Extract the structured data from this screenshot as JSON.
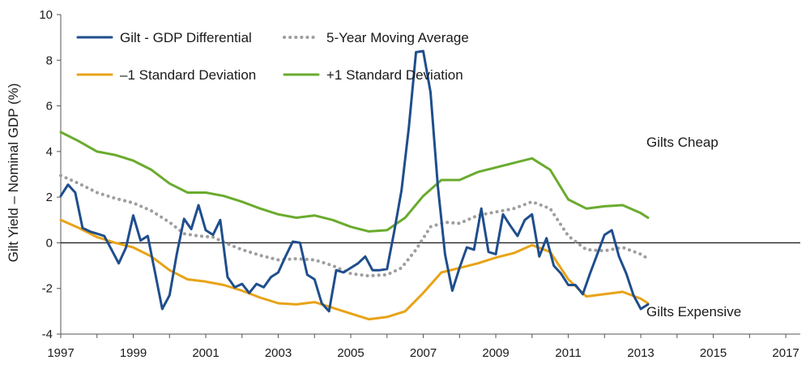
{
  "chart_data": {
    "type": "line",
    "title": "",
    "xlabel": "",
    "ylabel": "Gilt Yield – Nominal GDP (%)",
    "xlim": [
      1997,
      2017.4
    ],
    "ylim": [
      -4,
      10
    ],
    "x_ticks": [
      1997,
      1999,
      2001,
      2003,
      2005,
      2007,
      2009,
      2011,
      2013,
      2015,
      2017
    ],
    "y_ticks": [
      -4,
      -2,
      0,
      2,
      4,
      6,
      8,
      10
    ],
    "grid": false,
    "legend": {
      "placement": "top-left",
      "entries": [
        "Gilt - GDP Differential",
        "5-Year Moving Average",
        "–1 Standard Deviation",
        "+1 Standard Deviation"
      ]
    },
    "annotations": [
      "Gilts Cheap",
      "Gilts Expensive"
    ],
    "series": [
      {
        "name": "Gilt - GDP Differential",
        "color": "#1f4e8c",
        "style": "solid",
        "points": [
          [
            1997.0,
            2.05
          ],
          [
            1997.2,
            2.55
          ],
          [
            1997.4,
            2.2
          ],
          [
            1997.6,
            0.65
          ],
          [
            1997.8,
            0.5
          ],
          [
            1998.0,
            0.4
          ],
          [
            1998.2,
            0.3
          ],
          [
            1998.4,
            -0.3
          ],
          [
            1998.6,
            -0.9
          ],
          [
            1998.8,
            -0.2
          ],
          [
            1999.0,
            1.2
          ],
          [
            1999.2,
            0.1
          ],
          [
            1999.4,
            0.3
          ],
          [
            1999.6,
            -1.3
          ],
          [
            1999.8,
            -2.9
          ],
          [
            2000.0,
            -2.3
          ],
          [
            2000.2,
            -0.5
          ],
          [
            2000.4,
            1.05
          ],
          [
            2000.6,
            0.6
          ],
          [
            2000.8,
            1.65
          ],
          [
            2001.0,
            0.55
          ],
          [
            2001.2,
            0.35
          ],
          [
            2001.4,
            1.0
          ],
          [
            2001.6,
            -1.5
          ],
          [
            2001.8,
            -1.95
          ],
          [
            2002.0,
            -1.8
          ],
          [
            2002.2,
            -2.2
          ],
          [
            2002.4,
            -1.8
          ],
          [
            2002.6,
            -1.95
          ],
          [
            2002.8,
            -1.5
          ],
          [
            2003.0,
            -1.3
          ],
          [
            2003.2,
            -0.6
          ],
          [
            2003.4,
            0.05
          ],
          [
            2003.6,
            0.0
          ],
          [
            2003.8,
            -1.4
          ],
          [
            2004.0,
            -1.6
          ],
          [
            2004.2,
            -2.65
          ],
          [
            2004.4,
            -3.0
          ],
          [
            2004.6,
            -1.2
          ],
          [
            2004.8,
            -1.3
          ],
          [
            2005.0,
            -1.1
          ],
          [
            2005.2,
            -0.9
          ],
          [
            2005.4,
            -0.6
          ],
          [
            2005.6,
            -1.2
          ],
          [
            2005.8,
            -1.2
          ],
          [
            2006.0,
            -1.15
          ],
          [
            2006.2,
            0.5
          ],
          [
            2006.4,
            2.3
          ],
          [
            2006.6,
            5.0
          ],
          [
            2006.8,
            8.35
          ],
          [
            2007.0,
            8.4
          ],
          [
            2007.2,
            6.6
          ],
          [
            2007.4,
            2.5
          ],
          [
            2007.6,
            -0.5
          ],
          [
            2007.8,
            -2.1
          ],
          [
            2008.0,
            -1.1
          ],
          [
            2008.2,
            -0.2
          ],
          [
            2008.4,
            -0.3
          ],
          [
            2008.6,
            1.5
          ],
          [
            2008.8,
            -0.4
          ],
          [
            2009.0,
            -0.5
          ],
          [
            2009.2,
            1.25
          ],
          [
            2009.4,
            0.75
          ],
          [
            2009.6,
            0.3
          ],
          [
            2009.8,
            1.0
          ],
          [
            2010.0,
            1.25
          ],
          [
            2010.2,
            -0.6
          ],
          [
            2010.4,
            0.2
          ],
          [
            2010.6,
            -1.0
          ],
          [
            2010.8,
            -1.35
          ],
          [
            2011.0,
            -1.85
          ],
          [
            2011.2,
            -1.85
          ],
          [
            2011.4,
            -2.25
          ],
          [
            2011.6,
            -1.35
          ],
          [
            2011.8,
            -0.5
          ],
          [
            2012.0,
            0.35
          ],
          [
            2012.2,
            0.55
          ],
          [
            2012.4,
            -0.6
          ],
          [
            2012.6,
            -1.35
          ],
          [
            2012.8,
            -2.3
          ],
          [
            2013.0,
            -2.9
          ],
          [
            2013.2,
            -2.7
          ]
        ]
      },
      {
        "name": "5-Year Moving Average",
        "color": "#9e9e9e",
        "style": "dotted",
        "points": [
          [
            1997.0,
            2.95
          ],
          [
            1997.5,
            2.6
          ],
          [
            1998.0,
            2.2
          ],
          [
            1998.5,
            1.95
          ],
          [
            1999.0,
            1.75
          ],
          [
            1999.5,
            1.4
          ],
          [
            2000.0,
            0.9
          ],
          [
            2000.4,
            0.4
          ],
          [
            2000.8,
            0.3
          ],
          [
            2001.2,
            0.25
          ],
          [
            2001.6,
            -0.05
          ],
          [
            2002.0,
            -0.3
          ],
          [
            2002.5,
            -0.55
          ],
          [
            2003.0,
            -0.75
          ],
          [
            2003.5,
            -0.7
          ],
          [
            2004.0,
            -0.75
          ],
          [
            2004.5,
            -1.0
          ],
          [
            2005.0,
            -1.35
          ],
          [
            2005.5,
            -1.45
          ],
          [
            2006.0,
            -1.4
          ],
          [
            2006.4,
            -1.1
          ],
          [
            2006.8,
            -0.3
          ],
          [
            2007.2,
            0.7
          ],
          [
            2007.6,
            0.9
          ],
          [
            2008.0,
            0.85
          ],
          [
            2008.5,
            1.2
          ],
          [
            2009.0,
            1.35
          ],
          [
            2009.5,
            1.5
          ],
          [
            2010.0,
            1.8
          ],
          [
            2010.5,
            1.5
          ],
          [
            2011.0,
            0.3
          ],
          [
            2011.5,
            -0.3
          ],
          [
            2012.0,
            -0.35
          ],
          [
            2012.5,
            -0.2
          ],
          [
            2013.0,
            -0.5
          ],
          [
            2013.2,
            -0.7
          ]
        ]
      },
      {
        "name": "–1 Standard Deviation",
        "color": "#e8a317",
        "style": "solid",
        "points": [
          [
            1997.0,
            1.0
          ],
          [
            1997.5,
            0.65
          ],
          [
            1998.0,
            0.25
          ],
          [
            1998.5,
            0.0
          ],
          [
            1999.0,
            -0.2
          ],
          [
            1999.5,
            -0.6
          ],
          [
            2000.0,
            -1.2
          ],
          [
            2000.5,
            -1.6
          ],
          [
            2001.0,
            -1.7
          ],
          [
            2001.5,
            -1.85
          ],
          [
            2002.0,
            -2.1
          ],
          [
            2002.5,
            -2.4
          ],
          [
            2003.0,
            -2.65
          ],
          [
            2003.5,
            -2.7
          ],
          [
            2004.0,
            -2.6
          ],
          [
            2004.5,
            -2.85
          ],
          [
            2005.0,
            -3.1
          ],
          [
            2005.5,
            -3.35
          ],
          [
            2006.0,
            -3.25
          ],
          [
            2006.5,
            -3.0
          ],
          [
            2007.0,
            -2.2
          ],
          [
            2007.5,
            -1.3
          ],
          [
            2008.0,
            -1.1
          ],
          [
            2008.5,
            -0.9
          ],
          [
            2009.0,
            -0.65
          ],
          [
            2009.5,
            -0.45
          ],
          [
            2010.0,
            -0.1
          ],
          [
            2010.5,
            -0.4
          ],
          [
            2011.0,
            -1.6
          ],
          [
            2011.5,
            -2.35
          ],
          [
            2012.0,
            -2.25
          ],
          [
            2012.5,
            -2.15
          ],
          [
            2013.0,
            -2.45
          ],
          [
            2013.2,
            -2.65
          ]
        ]
      },
      {
        "name": "+1 Standard Deviation",
        "color": "#6aab2e",
        "style": "solid",
        "points": [
          [
            1997.0,
            4.85
          ],
          [
            1997.5,
            4.45
          ],
          [
            1998.0,
            4.0
          ],
          [
            1998.5,
            3.85
          ],
          [
            1999.0,
            3.6
          ],
          [
            1999.5,
            3.2
          ],
          [
            2000.0,
            2.6
          ],
          [
            2000.5,
            2.2
          ],
          [
            2001.0,
            2.2
          ],
          [
            2001.5,
            2.05
          ],
          [
            2002.0,
            1.8
          ],
          [
            2002.5,
            1.5
          ],
          [
            2003.0,
            1.25
          ],
          [
            2003.5,
            1.1
          ],
          [
            2004.0,
            1.2
          ],
          [
            2004.5,
            1.0
          ],
          [
            2005.0,
            0.7
          ],
          [
            2005.5,
            0.5
          ],
          [
            2006.0,
            0.55
          ],
          [
            2006.5,
            1.1
          ],
          [
            2007.0,
            2.05
          ],
          [
            2007.5,
            2.75
          ],
          [
            2008.0,
            2.75
          ],
          [
            2008.5,
            3.1
          ],
          [
            2009.0,
            3.3
          ],
          [
            2009.5,
            3.5
          ],
          [
            2010.0,
            3.7
          ],
          [
            2010.5,
            3.2
          ],
          [
            2011.0,
            1.9
          ],
          [
            2011.5,
            1.5
          ],
          [
            2012.0,
            1.6
          ],
          [
            2012.5,
            1.65
          ],
          [
            2013.0,
            1.3
          ],
          [
            2013.2,
            1.1
          ]
        ]
      }
    ]
  }
}
